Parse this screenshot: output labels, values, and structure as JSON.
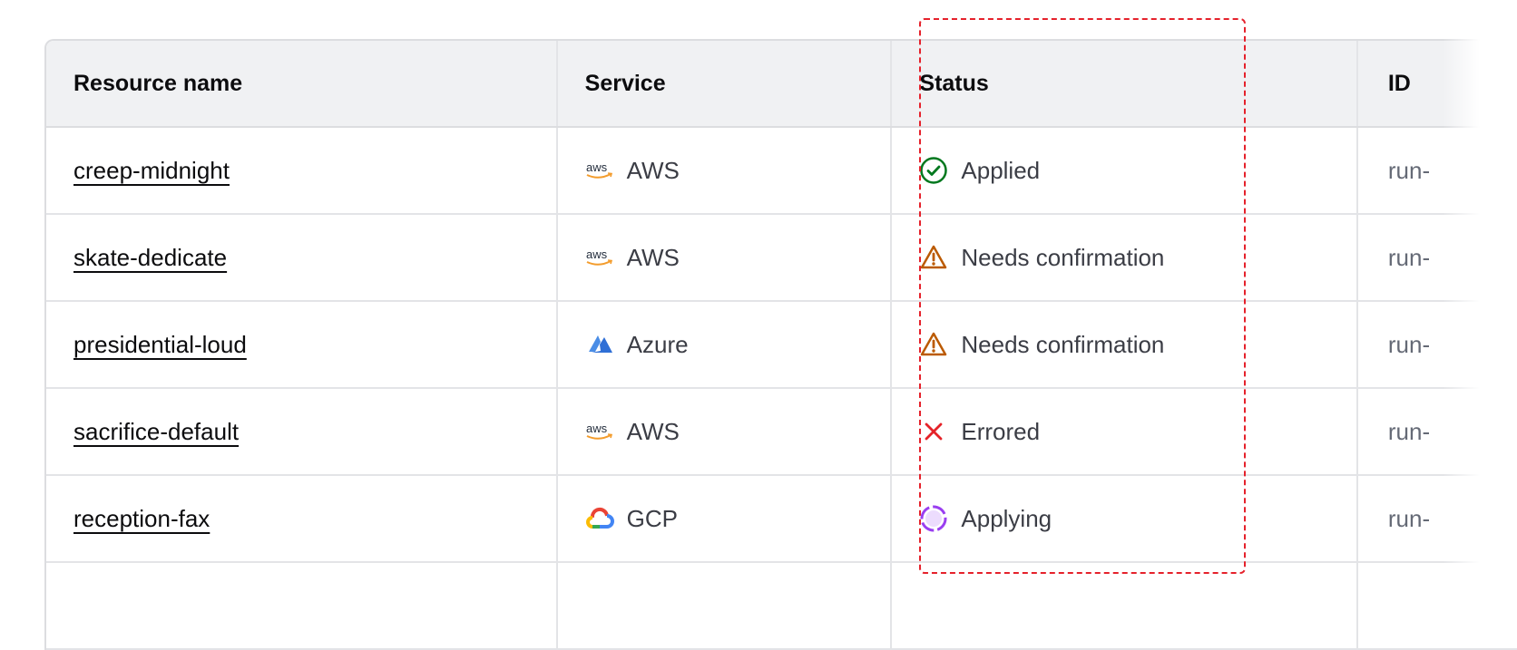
{
  "table": {
    "headers": [
      "Resource name",
      "Service",
      "Status",
      "ID"
    ],
    "rows": [
      {
        "name": "creep-midnight",
        "service": "AWS",
        "service_icon": "aws-logo-icon",
        "status": "Applied",
        "status_icon": "check-circle-icon",
        "id": "run-"
      },
      {
        "name": "skate-dedicate",
        "service": "AWS",
        "service_icon": "aws-logo-icon",
        "status": "Needs confirmation",
        "status_icon": "warning-triangle-icon",
        "id": "run-"
      },
      {
        "name": "presidential-loud",
        "service": "Azure",
        "service_icon": "azure-logo-icon",
        "status": "Needs confirmation",
        "status_icon": "warning-triangle-icon",
        "id": "run-"
      },
      {
        "name": "sacrifice-default",
        "service": "AWS",
        "service_icon": "aws-logo-icon",
        "status": "Errored",
        "status_icon": "x-icon",
        "id": "run-"
      },
      {
        "name": "reception-fax",
        "service": "GCP",
        "service_icon": "gcp-logo-icon",
        "status": "Applying",
        "status_icon": "loading-circle-icon",
        "id": "run-"
      }
    ]
  },
  "colors": {
    "applied": "#00781e",
    "warning": "#bb5a00",
    "errored": "#e52228",
    "applying": "#9a3ff0",
    "highlight": "#e5212b"
  }
}
